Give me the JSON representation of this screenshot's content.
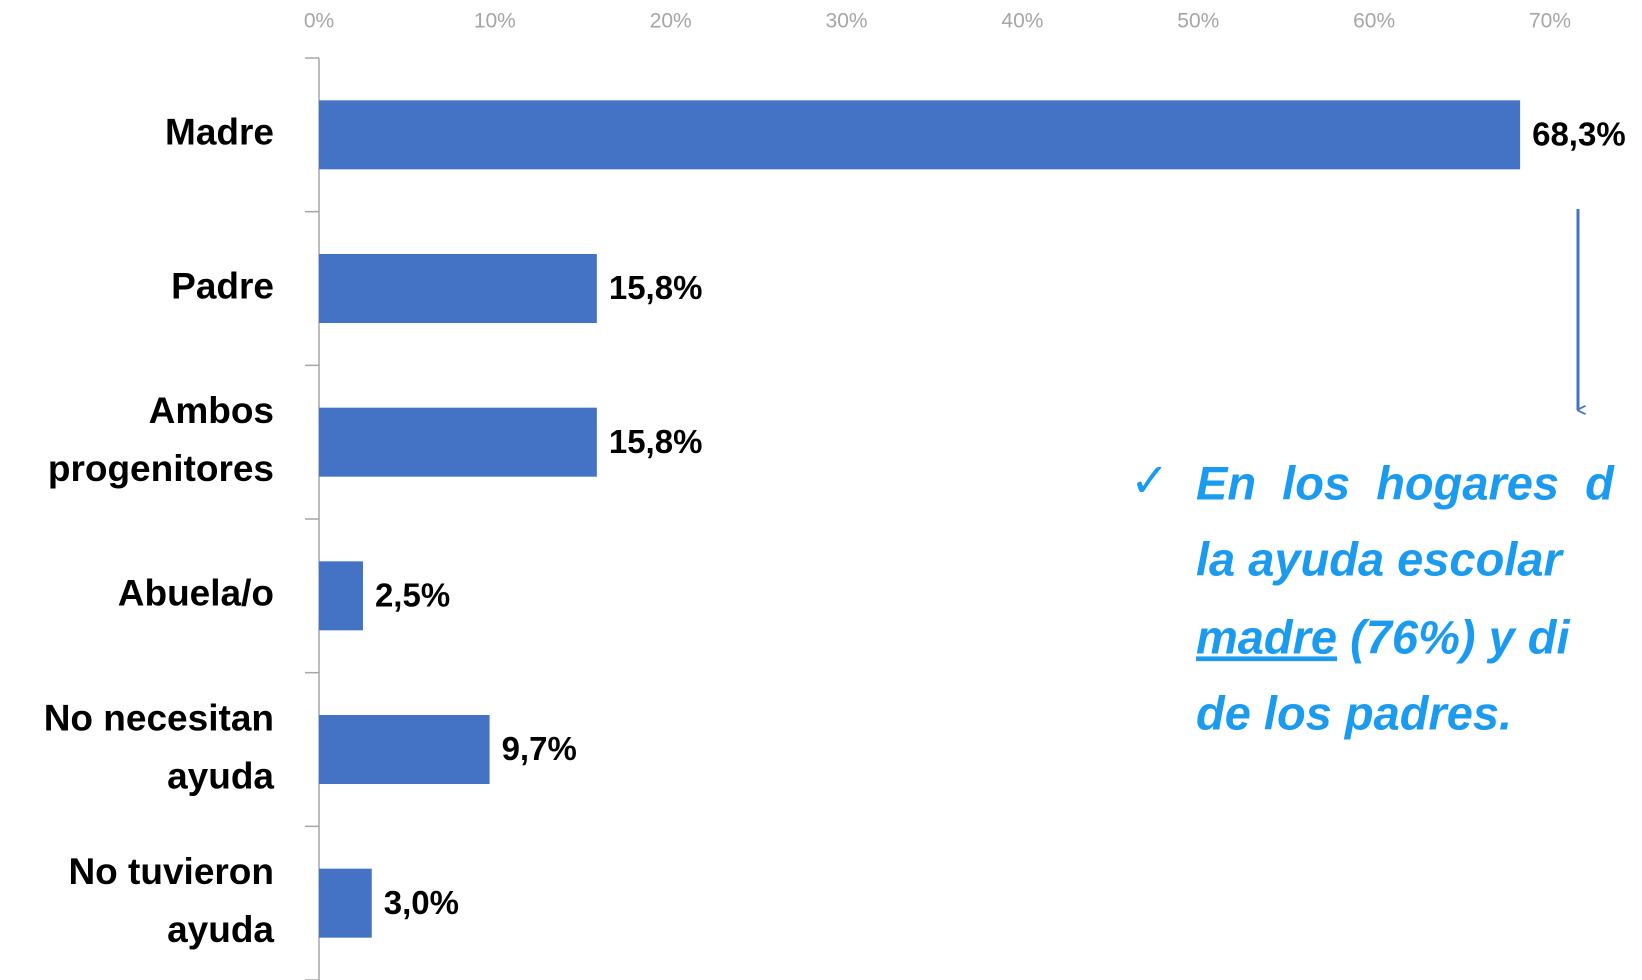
{
  "chart_data": {
    "type": "bar",
    "orientation": "horizontal",
    "categories": [
      "Madre",
      "Padre",
      "Ambos progenitores",
      "Abuela/o",
      "No necesitan ayuda",
      "No tuvieron ayuda"
    ],
    "values": [
      68.3,
      15.8,
      15.8,
      2.5,
      9.7,
      3.0
    ],
    "value_labels": [
      "68,3%",
      "15,8%",
      "15,8%",
      "2,5%",
      "9,7%",
      "3,0%"
    ],
    "color": "#4472c4",
    "xlim": [
      0,
      70
    ],
    "xticks": [
      {
        "value": 0,
        "label": "0%"
      },
      {
        "value": 10,
        "label": "10%"
      },
      {
        "value": 20,
        "label": "20%"
      },
      {
        "value": 30,
        "label": "30%"
      },
      {
        "value": 40,
        "label": "40%"
      },
      {
        "value": 50,
        "label": "50%"
      },
      {
        "value": 60,
        "label": "60%"
      },
      {
        "value": 70,
        "label": "70%"
      }
    ],
    "annotation": {
      "bullet": "✓",
      "lines": [
        "En  los  hogares  d",
        "la ayuda escolar",
        "madre",
        " (76%) y di",
        "de los padres."
      ]
    }
  }
}
